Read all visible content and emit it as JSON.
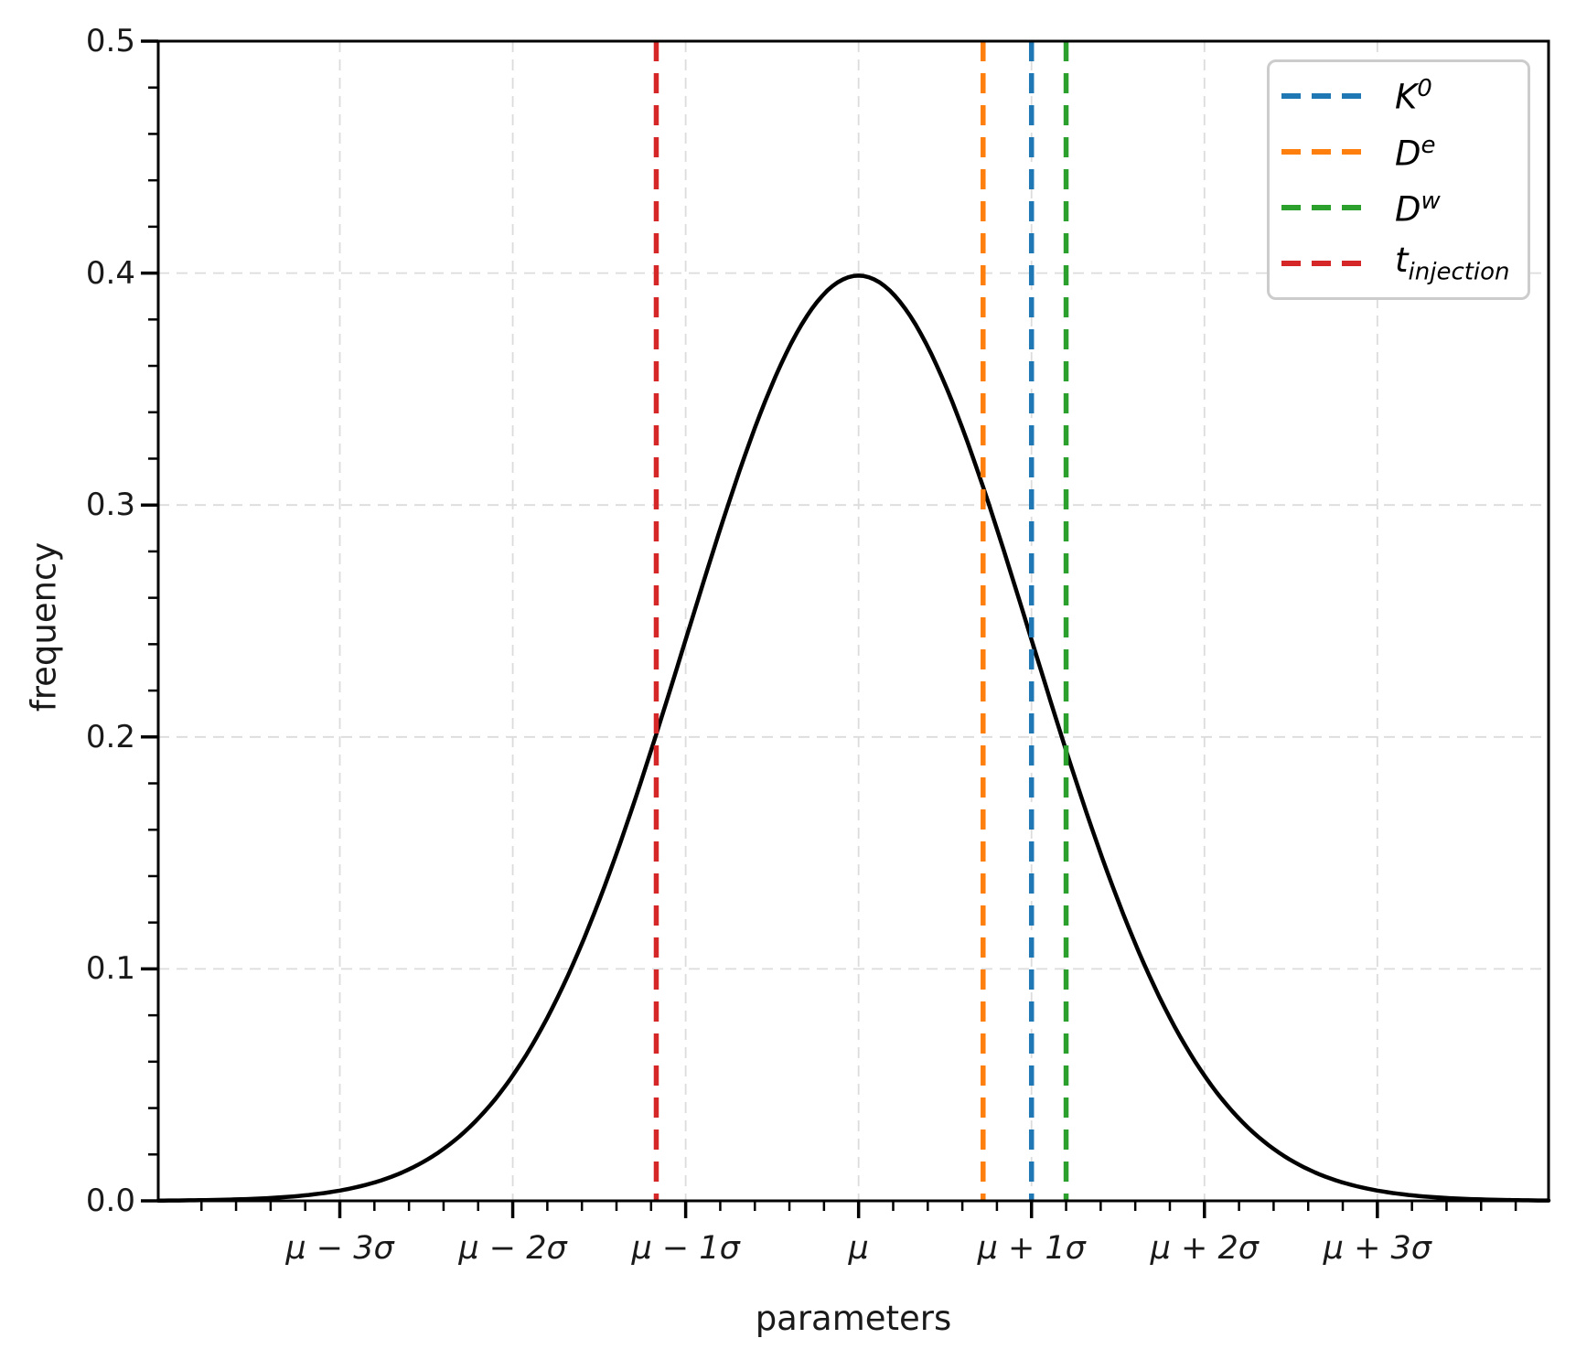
{
  "chart_data": {
    "type": "line",
    "title": "",
    "xlabel": "parameters",
    "ylabel": "frequency",
    "x_axis": {
      "tick_labels": [
        "μ − 3σ",
        "μ − 2σ",
        "μ − 1σ",
        "μ",
        "μ + 1σ",
        "μ + 2σ",
        "μ + 3σ"
      ],
      "tick_positions_sigma": [
        -3,
        -2,
        -1,
        0,
        1,
        2,
        3
      ],
      "range_sigma": [
        -4.05,
        3.99
      ],
      "minor_tick_step_sigma": 0.2
    },
    "y_axis": {
      "tick_labels": [
        "0.0",
        "0.1",
        "0.2",
        "0.3",
        "0.4",
        "0.5"
      ],
      "tick_values": [
        0,
        0.1,
        0.2,
        0.3,
        0.4,
        0.5
      ],
      "range": [
        0,
        0.5
      ],
      "minor_tick_step": 0.02
    },
    "grid": {
      "show": true,
      "color": "#dcdcdc",
      "style": "dashed"
    },
    "curve": {
      "name": "gaussian-pdf",
      "description": "standard normal distribution frequency curve",
      "color": "#000000",
      "peak_value": 0.3989,
      "mean_sigma": 0,
      "std_sigma": 1
    },
    "vlines": [
      {
        "id": "K0",
        "label_base": "K",
        "label_sup": "0",
        "label_sub": "",
        "position_sigma": 1.0,
        "value_at_curve": 0.242,
        "color": "#1f77b4",
        "style": "dashed"
      },
      {
        "id": "De",
        "label_base": "D",
        "label_sup": "e",
        "label_sub": "",
        "position_sigma": 0.72,
        "value_at_curve": 0.308,
        "color": "#ff7f0e",
        "style": "dashed"
      },
      {
        "id": "Dw",
        "label_base": "D",
        "label_sup": "w",
        "label_sub": "",
        "position_sigma": 1.2,
        "value_at_curve": 0.194,
        "color": "#2ca02c",
        "style": "dashed"
      },
      {
        "id": "t_injection",
        "label_base": "t",
        "label_sup": "",
        "label_sub": "injection",
        "position_sigma": -1.17,
        "value_at_curve": 0.2,
        "color": "#d62728",
        "style": "dashed"
      }
    ],
    "legend_position": "upper right"
  },
  "style": {
    "background": "#ffffff",
    "spine_color": "#000000",
    "tick_color": "#000000",
    "grid_color": "#dcdcdc",
    "legend_border_color": "#cccccc"
  }
}
